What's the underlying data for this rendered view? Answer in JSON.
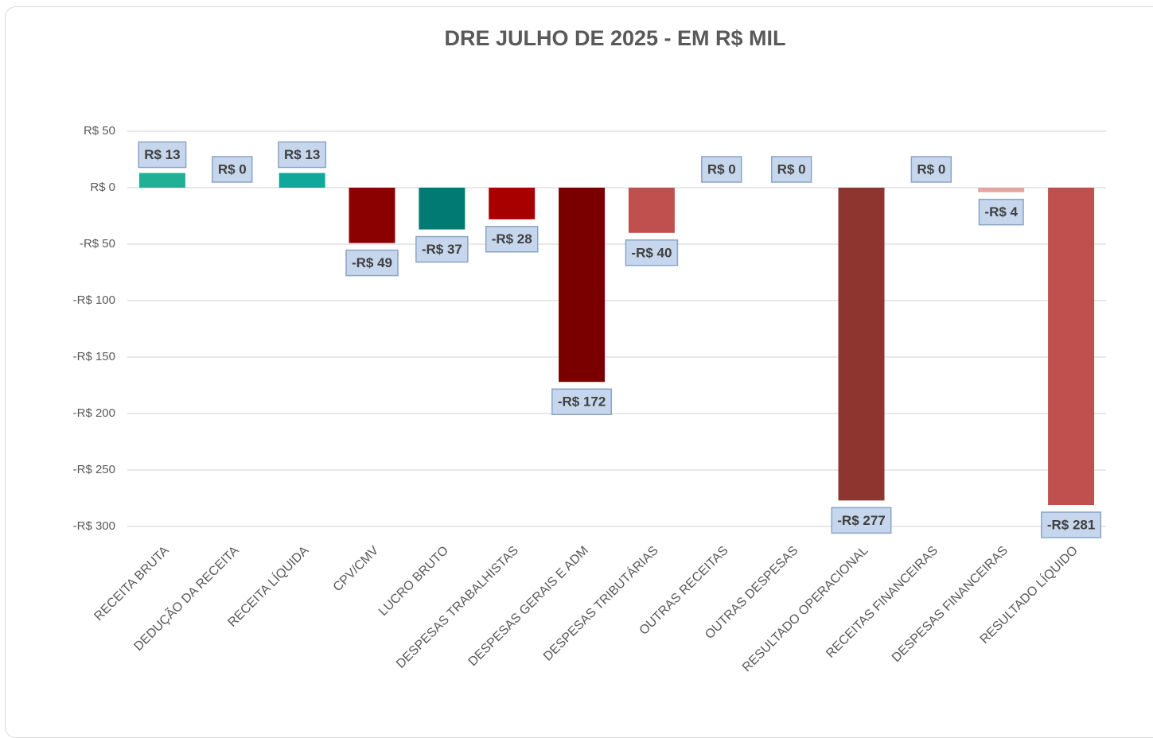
{
  "chart_data": {
    "type": "bar",
    "title": "DRE JULHO DE 2025 - EM R$ MIL",
    "categories": [
      "RECEITA BRUTA",
      "DEDUÇÃO DA RECEITA",
      "RECEITA LÍQUIDA",
      "CPV/CMV",
      "LUCRO BRUTO",
      "DESPESAS TRABALHISTAS",
      "DESPESAS GERAIS E ADM",
      "DESPESAS TRIBUTÁRIAS",
      "OUTRAS RECEITAS",
      "OUTRAS DESPESAS",
      "RESULTADO OPERACIONAL",
      "RECEITAS FINANCEIRAS",
      "DESPESAS FINANCEIRAS",
      "RESULTADO LÍQUIDO"
    ],
    "values": [
      13,
      0,
      13,
      -49,
      -37,
      -28,
      -172,
      -40,
      0,
      0,
      -277,
      0,
      -4,
      -281
    ],
    "value_labels": [
      "R$ 13",
      "R$ 0",
      "R$ 13",
      "-R$ 49",
      "-R$ 37",
      "-R$ 28",
      "-R$ 172",
      "-R$ 40",
      "R$ 0",
      "R$ 0",
      "-R$ 277",
      "R$ 0",
      "-R$ 4",
      "-R$ 281"
    ],
    "colors": [
      "#1fb095",
      "#1fb095",
      "#0fa89a",
      "#8b0000",
      "#007a72",
      "#a80000",
      "#7a0000",
      "#c0504d",
      "#c0504d",
      "#c0504d",
      "#8f3530",
      "#c0504d",
      "#e6a5a3",
      "#c0504d"
    ],
    "ylim": [
      -300,
      50
    ],
    "yticks": [
      {
        "value": 50,
        "label": "R$ 50"
      },
      {
        "value": 0,
        "label": "R$ 0"
      },
      {
        "value": -50,
        "label": "-R$ 50"
      },
      {
        "value": -100,
        "label": "-R$ 100"
      },
      {
        "value": -150,
        "label": "-R$ 150"
      },
      {
        "value": -200,
        "label": "-R$ 200"
      },
      {
        "value": -250,
        "label": "-R$ 250"
      },
      {
        "value": -300,
        "label": "-R$ 300"
      }
    ],
    "grid": true
  }
}
